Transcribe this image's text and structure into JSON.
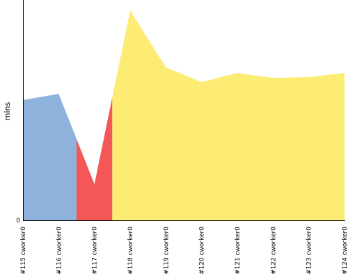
{
  "chart_data": {
    "type": "area",
    "ylabel": "mins",
    "ytick_labels": [
      "0"
    ],
    "ylim": [
      0,
      302
    ],
    "categories": [
      "#115 cworker0",
      "#116 cworker0",
      "#117 cworker0",
      "#118 cworker0",
      "#119 cworker0",
      "#120 cworker0",
      "#121 cworker0",
      "#122 cworker0",
      "#123 cworker0",
      "#124 cworker0"
    ],
    "values": [
      173,
      182,
      52,
      302,
      220,
      199,
      212,
      205,
      206,
      212
    ],
    "segment_colors": {
      "blue": "#8fb2dc",
      "red": "#f45757",
      "yellow": "#fdec74"
    },
    "colors": {
      "axis": "#000000"
    }
  }
}
